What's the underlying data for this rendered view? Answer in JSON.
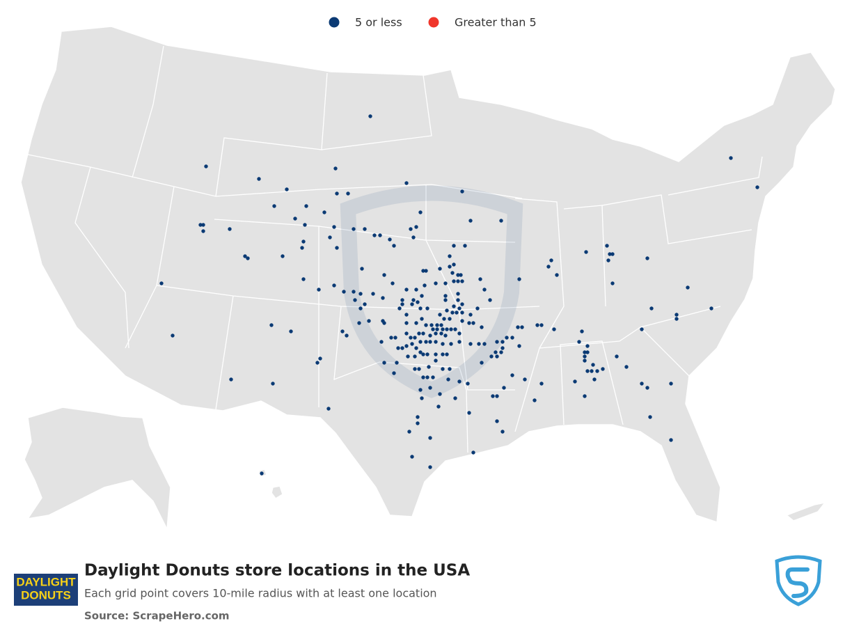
{
  "legend": [
    {
      "label": "5 or less",
      "color": "#0b3a74"
    },
    {
      "label": "Greater than 5",
      "color": "#f0362b"
    }
  ],
  "title": "Daylight Donuts store locations in the USA",
  "subtitle": "Each grid point covers 10-mile radius with at least one location",
  "source": "Source: ScrapeHero.com",
  "logo": {
    "line1": "DAYLIGHT",
    "line2": "DONUTS"
  },
  "locations": [
    [
      -100.9,
      45.7
    ],
    [
      -112.7,
      43.3
    ],
    [
      -108.9,
      42.7
    ],
    [
      -106.9,
      42.2
    ],
    [
      -103.4,
      43.2
    ],
    [
      -98.3,
      42.5
    ],
    [
      -94.3,
      42.1
    ],
    [
      -103.3,
      42.0
    ],
    [
      -102.5,
      42.0
    ],
    [
      -107.8,
      41.4
    ],
    [
      -105.5,
      41.4
    ],
    [
      -104.2,
      41.1
    ],
    [
      -106.3,
      40.8
    ],
    [
      -105.6,
      40.5
    ],
    [
      -97.3,
      41.1
    ],
    [
      -113.1,
      40.5
    ],
    [
      -112.9,
      40.5
    ],
    [
      -112.9,
      40.2
    ],
    [
      -111.0,
      40.3
    ],
    [
      -103.5,
      40.4
    ],
    [
      -102.1,
      40.3
    ],
    [
      -101.3,
      40.3
    ],
    [
      -100.6,
      40.0
    ],
    [
      -100.2,
      40.0
    ],
    [
      -98.0,
      40.3
    ],
    [
      -97.6,
      40.4
    ],
    [
      -97.8,
      39.9
    ],
    [
      -103.8,
      39.9
    ],
    [
      -93.7,
      40.7
    ],
    [
      -91.5,
      40.7
    ],
    [
      -105.7,
      39.7
    ],
    [
      -105.8,
      39.4
    ],
    [
      -103.3,
      39.4
    ],
    [
      -99.5,
      39.8
    ],
    [
      -99.2,
      39.5
    ],
    [
      -94.9,
      39.5
    ],
    [
      -94.1,
      39.5
    ],
    [
      -109.9,
      39.0
    ],
    [
      -109.7,
      38.9
    ],
    [
      -107.2,
      39.0
    ],
    [
      -95.2,
      39.0
    ],
    [
      -105.7,
      37.9
    ],
    [
      -115.9,
      37.7
    ],
    [
      -104.6,
      37.4
    ],
    [
      -103.5,
      37.6
    ],
    [
      -102.8,
      37.3
    ],
    [
      -101.5,
      38.4
    ],
    [
      -99.9,
      38.1
    ],
    [
      -99.3,
      37.7
    ],
    [
      -97.1,
      38.3
    ],
    [
      -96.9,
      38.3
    ],
    [
      -95.9,
      38.4
    ],
    [
      -95.2,
      38.5
    ],
    [
      -94.9,
      38.6
    ],
    [
      -95.0,
      38.2
    ],
    [
      -94.6,
      38.1
    ],
    [
      -94.4,
      38.1
    ],
    [
      -94.9,
      37.8
    ],
    [
      -94.6,
      37.8
    ],
    [
      -94.3,
      37.8
    ],
    [
      -95.5,
      37.7
    ],
    [
      -96.2,
      37.7
    ],
    [
      -97.0,
      37.6
    ],
    [
      -98.3,
      37.4
    ],
    [
      -97.6,
      37.4
    ],
    [
      -93.0,
      37.9
    ],
    [
      -92.7,
      37.4
    ],
    [
      -90.2,
      37.9
    ],
    [
      -87.9,
      38.8
    ],
    [
      -88.1,
      38.5
    ],
    [
      -87.5,
      38.1
    ],
    [
      -85.4,
      39.2
    ],
    [
      -83.9,
      39.5
    ],
    [
      -83.7,
      39.1
    ],
    [
      -83.8,
      38.8
    ],
    [
      -83.5,
      39.1
    ],
    [
      -81.0,
      38.9
    ],
    [
      -83.5,
      37.7
    ],
    [
      -78.1,
      37.5
    ],
    [
      -75.0,
      43.7
    ],
    [
      -73.1,
      42.3
    ],
    [
      -102.1,
      37.3
    ],
    [
      -101.6,
      37.2
    ],
    [
      -100.7,
      37.2
    ],
    [
      -100.0,
      37.0
    ],
    [
      -102.0,
      36.9
    ],
    [
      -101.3,
      36.7
    ],
    [
      -101.6,
      36.5
    ],
    [
      -98.6,
      36.9
    ],
    [
      -97.8,
      36.9
    ],
    [
      -97.2,
      37.1
    ],
    [
      -98.6,
      36.7
    ],
    [
      -97.9,
      36.7
    ],
    [
      -97.5,
      36.8
    ],
    [
      -98.8,
      36.5
    ],
    [
      -97.3,
      36.5
    ],
    [
      -96.8,
      36.5
    ],
    [
      -95.5,
      37.1
    ],
    [
      -95.5,
      36.9
    ],
    [
      -94.6,
      37.2
    ],
    [
      -94.6,
      36.9
    ],
    [
      -94.3,
      36.7
    ],
    [
      -94.9,
      36.6
    ],
    [
      -94.5,
      36.5
    ],
    [
      -95.4,
      36.4
    ],
    [
      -95.9,
      36.2
    ],
    [
      -95.0,
      36.3
    ],
    [
      -94.7,
      36.3
    ],
    [
      -94.3,
      36.3
    ],
    [
      -93.7,
      36.2
    ],
    [
      -93.2,
      36.5
    ],
    [
      -92.3,
      36.9
    ],
    [
      -99.9,
      35.8
    ],
    [
      -98.3,
      36.2
    ],
    [
      -98.3,
      35.8
    ],
    [
      -97.6,
      35.8
    ],
    [
      -97.2,
      36.0
    ],
    [
      -96.9,
      35.7
    ],
    [
      -96.5,
      35.7
    ],
    [
      -96.1,
      35.7
    ],
    [
      -95.8,
      35.7
    ],
    [
      -95.6,
      36.0
    ],
    [
      -95.2,
      36.0
    ],
    [
      -94.3,
      35.9
    ],
    [
      -93.8,
      35.8
    ],
    [
      -93.5,
      35.8
    ],
    [
      -92.9,
      35.6
    ],
    [
      -90.3,
      35.6
    ],
    [
      -90.0,
      35.6
    ],
    [
      -88.9,
      35.7
    ],
    [
      -88.6,
      35.7
    ],
    [
      -87.7,
      35.5
    ],
    [
      -85.7,
      35.4
    ],
    [
      -80.7,
      36.5
    ],
    [
      -81.4,
      35.5
    ],
    [
      -78.9,
      36.2
    ],
    [
      -78.9,
      36.0
    ],
    [
      -76.4,
      36.5
    ],
    [
      -108.0,
      35.7
    ],
    [
      -106.6,
      35.4
    ],
    [
      -115.1,
      35.2
    ],
    [
      -102.9,
      35.4
    ],
    [
      -102.6,
      35.2
    ],
    [
      -101.7,
      35.8
    ],
    [
      -101.0,
      35.9
    ],
    [
      -100.0,
      35.9
    ],
    [
      -99.4,
      35.1
    ],
    [
      -99.1,
      35.1
    ],
    [
      -98.3,
      35.3
    ],
    [
      -98.0,
      35.1
    ],
    [
      -97.7,
      35.1
    ],
    [
      -97.4,
      35.3
    ],
    [
      -97.1,
      35.3
    ],
    [
      -96.4,
      35.5
    ],
    [
      -96.1,
      35.5
    ],
    [
      -95.7,
      35.5
    ],
    [
      -95.4,
      35.5
    ],
    [
      -96.6,
      35.2
    ],
    [
      -96.2,
      35.3
    ],
    [
      -95.8,
      35.3
    ],
    [
      -95.5,
      35.2
    ],
    [
      -95.1,
      35.5
    ],
    [
      -94.8,
      35.5
    ],
    [
      -94.5,
      35.3
    ],
    [
      -98.3,
      34.7
    ],
    [
      -97.9,
      34.8
    ],
    [
      -97.6,
      34.6
    ],
    [
      -97.3,
      34.9
    ],
    [
      -96.9,
      34.9
    ],
    [
      -97.1,
      34.3
    ],
    [
      -96.6,
      34.9
    ],
    [
      -96.2,
      34.9
    ],
    [
      -95.7,
      34.8
    ],
    [
      -95.1,
      34.8
    ],
    [
      -94.5,
      34.9
    ],
    [
      -98.6,
      34.6
    ],
    [
      -98.9,
      34.6
    ],
    [
      -100.1,
      34.9
    ],
    [
      -98.2,
      34.2
    ],
    [
      -97.7,
      34.2
    ],
    [
      -97.3,
      34.4
    ],
    [
      -96.8,
      34.3
    ],
    [
      -96.2,
      34.3
    ],
    [
      -95.7,
      34.3
    ],
    [
      -95.4,
      34.3
    ],
    [
      -93.7,
      34.8
    ],
    [
      -93.1,
      34.8
    ],
    [
      -92.7,
      34.8
    ],
    [
      -91.8,
      34.9
    ],
    [
      -91.4,
      34.9
    ],
    [
      -91.1,
      35.1
    ],
    [
      -90.7,
      35.1
    ],
    [
      -90.2,
      34.7
    ],
    [
      -91.4,
      34.6
    ],
    [
      -91.9,
      34.4
    ],
    [
      -92.2,
      34.2
    ],
    [
      -91.8,
      34.2
    ],
    [
      -91.5,
      34.4
    ],
    [
      -92.9,
      33.9
    ],
    [
      -96.2,
      34.0
    ],
    [
      -96.7,
      33.7
    ],
    [
      -95.7,
      33.6
    ],
    [
      -95.2,
      33.6
    ],
    [
      -97.7,
      33.6
    ],
    [
      -97.4,
      33.6
    ],
    [
      -99.0,
      33.9
    ],
    [
      -99.9,
      33.9
    ],
    [
      -99.2,
      33.4
    ],
    [
      -97.1,
      33.2
    ],
    [
      -96.8,
      33.2
    ],
    [
      -96.4,
      33.2
    ],
    [
      -95.3,
      33.1
    ],
    [
      -94.5,
      33.0
    ],
    [
      -85.9,
      34.9
    ],
    [
      -85.3,
      34.7
    ],
    [
      -85.5,
      34.4
    ],
    [
      -85.3,
      34.4
    ],
    [
      -85.5,
      34.2
    ],
    [
      -85.5,
      34.0
    ],
    [
      -84.9,
      33.8
    ],
    [
      -85.3,
      33.5
    ],
    [
      -85.0,
      33.5
    ],
    [
      -84.6,
      33.5
    ],
    [
      -84.2,
      33.6
    ],
    [
      -83.2,
      34.2
    ],
    [
      -82.5,
      33.7
    ],
    [
      -90.7,
      33.3
    ],
    [
      -91.3,
      32.7
    ],
    [
      -89.8,
      33.1
    ],
    [
      -88.6,
      32.9
    ],
    [
      -86.2,
      33.0
    ],
    [
      -84.8,
      33.1
    ],
    [
      -81.4,
      32.9
    ],
    [
      -81.0,
      32.7
    ],
    [
      -79.3,
      32.9
    ],
    [
      -104.5,
      34.1
    ],
    [
      -104.7,
      33.9
    ],
    [
      -110.9,
      33.1
    ],
    [
      -107.9,
      32.9
    ],
    [
      -97.3,
      32.6
    ],
    [
      -96.6,
      32.7
    ],
    [
      -97.2,
      32.2
    ],
    [
      -95.9,
      32.4
    ],
    [
      -93.9,
      32.9
    ],
    [
      -94.8,
      32.2
    ],
    [
      -92.1,
      32.3
    ],
    [
      -91.8,
      32.3
    ],
    [
      -89.1,
      32.1
    ],
    [
      -85.5,
      32.3
    ],
    [
      -96.0,
      31.8
    ],
    [
      -103.9,
      31.7
    ],
    [
      -93.8,
      31.5
    ],
    [
      -97.5,
      31.3
    ],
    [
      -97.5,
      31.0
    ],
    [
      -91.8,
      31.1
    ],
    [
      -98.1,
      30.6
    ],
    [
      -96.6,
      30.3
    ],
    [
      -91.4,
      30.6
    ],
    [
      -80.8,
      31.3
    ],
    [
      -79.3,
      30.2
    ],
    [
      -97.9,
      29.4
    ],
    [
      -93.5,
      29.6
    ],
    [
      -96.6,
      28.9
    ],
    [
      -108.7,
      28.6
    ]
  ]
}
